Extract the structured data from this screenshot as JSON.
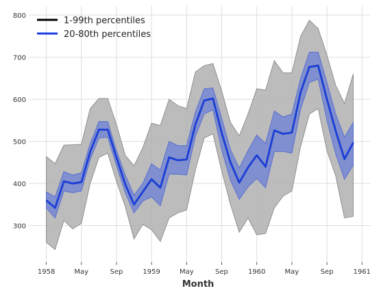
{
  "chart_data": {
    "type": "line",
    "title": "",
    "xlabel": "Month",
    "ylabel": "",
    "x": [
      "1958-01",
      "1958-02",
      "1958-03",
      "1958-04",
      "1958-05",
      "1958-06",
      "1958-07",
      "1958-08",
      "1958-09",
      "1958-10",
      "1958-11",
      "1958-12",
      "1959-01",
      "1959-02",
      "1959-03",
      "1959-04",
      "1959-05",
      "1959-06",
      "1959-07",
      "1959-08",
      "1959-09",
      "1959-10",
      "1959-11",
      "1959-12",
      "1960-01",
      "1960-02",
      "1960-03",
      "1960-04",
      "1960-05",
      "1960-06",
      "1960-07",
      "1960-08",
      "1960-09",
      "1960-10",
      "1960-11",
      "1960-12"
    ],
    "x_ticks": [
      "1958",
      "May",
      "Sep",
      "1959",
      "May",
      "Sep",
      "1960",
      "May",
      "Sep",
      "1961"
    ],
    "x_tick_dates": [
      "1958-01",
      "1958-05",
      "1958-09",
      "1959-01",
      "1959-05",
      "1959-09",
      "1960-01",
      "1960-05",
      "1960-09",
      "1961-01"
    ],
    "x_range": [
      "1957-11",
      "1961-02"
    ],
    "y_ticks": [
      300,
      400,
      500,
      600,
      700,
      800
    ],
    "ylim": [
      213,
      823
    ],
    "grid": true,
    "legend_position": "top-left",
    "series": [
      {
        "name": "1-99th percentiles",
        "color": "#000000",
        "band_color": "#b0b0b0",
        "median": [
          360,
          342,
          405,
          400,
          403,
          475,
          528,
          528,
          462,
          398,
          350,
          380,
          410,
          390,
          462,
          455,
          457,
          540,
          597,
          602,
          520,
          450,
          402,
          438,
          467,
          440,
          526,
          518,
          521,
          617,
          677,
          680,
          600,
          525,
          458,
          497
        ],
        "lower": [
          260,
          243,
          312,
          292,
          305,
          400,
          462,
          472,
          405,
          345,
          268,
          303,
          290,
          262,
          318,
          330,
          337,
          432,
          508,
          518,
          430,
          350,
          284,
          318,
          278,
          281,
          342,
          370,
          382,
          488,
          565,
          578,
          478,
          418,
          318,
          322
        ],
        "upper": [
          464,
          447,
          491,
          492,
          493,
          578,
          602,
          602,
          540,
          467,
          442,
          485,
          543,
          538,
          600,
          585,
          578,
          665,
          680,
          685,
          620,
          545,
          513,
          565,
          625,
          622,
          692,
          663,
          663,
          750,
          788,
          768,
          705,
          633,
          590,
          660
        ]
      },
      {
        "name": "20-80th percentiles",
        "color": "#1a3fe0",
        "band_color": "#6b80d6",
        "median": [
          360,
          342,
          405,
          400,
          403,
          475,
          528,
          528,
          462,
          398,
          350,
          380,
          410,
          390,
          462,
          455,
          457,
          540,
          597,
          602,
          520,
          450,
          402,
          438,
          467,
          440,
          526,
          518,
          521,
          617,
          677,
          680,
          600,
          525,
          458,
          497
        ],
        "lower": [
          342,
          318,
          382,
          378,
          382,
          457,
          508,
          510,
          443,
          378,
          330,
          358,
          368,
          347,
          422,
          422,
          420,
          512,
          565,
          575,
          480,
          407,
          362,
          392,
          412,
          390,
          476,
          476,
          472,
          577,
          640,
          648,
          550,
          470,
          410,
          443
        ],
        "upper": [
          380,
          368,
          428,
          420,
          425,
          495,
          547,
          547,
          478,
          420,
          372,
          400,
          447,
          432,
          500,
          490,
          490,
          570,
          625,
          627,
          555,
          480,
          437,
          478,
          515,
          495,
          572,
          558,
          565,
          650,
          712,
          712,
          640,
          565,
          510,
          545
        ]
      }
    ]
  }
}
